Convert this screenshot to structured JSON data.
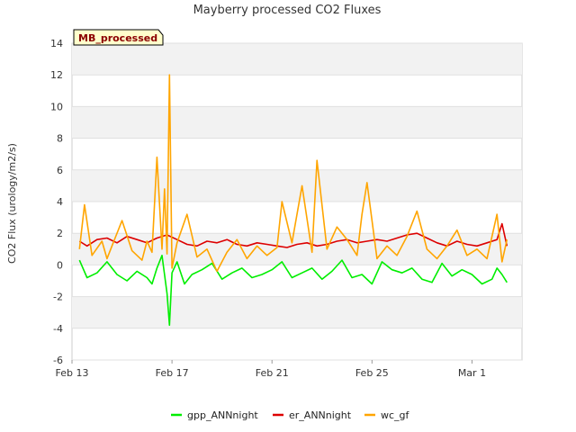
{
  "chart_data": {
    "type": "line",
    "title": "Mayberry processed CO2 Fluxes",
    "badge": "MB_processed",
    "xlabel": "",
    "ylabel": "CO2 Flux (urology/m2/s)",
    "ylim": [
      -6,
      14
    ],
    "yticks": [
      -6,
      -4,
      -2,
      0,
      2,
      4,
      6,
      8,
      10,
      12,
      14
    ],
    "xlim_days": [
      0,
      18
    ],
    "xticks": [
      {
        "day": 0,
        "label": "Feb 13"
      },
      {
        "day": 4,
        "label": "Feb 17"
      },
      {
        "day": 8,
        "label": "Feb 21"
      },
      {
        "day": 12,
        "label": "Feb 25"
      },
      {
        "day": 16,
        "label": "Mar 1"
      }
    ],
    "grid": true,
    "legend_position": "bottom",
    "series": [
      {
        "name": "gpp_ANNnight",
        "color": "#00ee00",
        "x": [
          0.3,
          0.6,
          1.0,
          1.4,
          1.8,
          2.2,
          2.6,
          3.0,
          3.2,
          3.4,
          3.6,
          3.8,
          3.9,
          4.0,
          4.2,
          4.5,
          4.8,
          5.2,
          5.6,
          6.0,
          6.4,
          6.8,
          7.2,
          7.6,
          8.0,
          8.4,
          8.8,
          9.2,
          9.6,
          10.0,
          10.4,
          10.8,
          11.2,
          11.6,
          12.0,
          12.4,
          12.8,
          13.2,
          13.6,
          14.0,
          14.4,
          14.8,
          15.2,
          15.6,
          16.0,
          16.4,
          16.8,
          17.0,
          17.2,
          17.4
        ],
        "y": [
          0.3,
          -0.8,
          -0.5,
          0.2,
          -0.6,
          -1.0,
          -0.4,
          -0.8,
          -1.2,
          -0.2,
          0.6,
          -1.8,
          -3.8,
          -0.5,
          0.2,
          -1.2,
          -0.6,
          -0.3,
          0.1,
          -0.9,
          -0.5,
          -0.2,
          -0.8,
          -0.6,
          -0.3,
          0.2,
          -0.8,
          -0.5,
          -0.2,
          -0.9,
          -0.4,
          0.3,
          -0.8,
          -0.6,
          -1.2,
          0.2,
          -0.3,
          -0.5,
          -0.2,
          -0.9,
          -1.1,
          0.1,
          -0.7,
          -0.3,
          -0.6,
          -1.2,
          -0.9,
          -0.2,
          -0.6,
          -1.1
        ]
      },
      {
        "name": "er_ANNnight",
        "color": "#dd0000",
        "x": [
          0.3,
          0.6,
          1.0,
          1.4,
          1.8,
          2.2,
          2.6,
          3.0,
          3.4,
          3.8,
          4.2,
          4.6,
          5.0,
          5.4,
          5.8,
          6.2,
          6.6,
          7.0,
          7.4,
          7.8,
          8.2,
          8.6,
          9.0,
          9.4,
          9.8,
          10.2,
          10.6,
          11.0,
          11.4,
          11.8,
          12.2,
          12.6,
          13.0,
          13.4,
          13.8,
          14.2,
          14.6,
          15.0,
          15.4,
          15.8,
          16.2,
          16.6,
          17.0,
          17.2,
          17.4
        ],
        "y": [
          1.5,
          1.2,
          1.6,
          1.7,
          1.4,
          1.8,
          1.6,
          1.4,
          1.7,
          1.9,
          1.6,
          1.3,
          1.2,
          1.5,
          1.4,
          1.6,
          1.3,
          1.2,
          1.4,
          1.3,
          1.2,
          1.1,
          1.3,
          1.4,
          1.2,
          1.3,
          1.5,
          1.6,
          1.4,
          1.5,
          1.6,
          1.5,
          1.7,
          1.9,
          2.0,
          1.7,
          1.4,
          1.2,
          1.5,
          1.3,
          1.2,
          1.4,
          1.6,
          2.6,
          1.2
        ]
      },
      {
        "name": "wc_gf",
        "color": "#ffa500",
        "x": [
          0.3,
          0.5,
          0.8,
          1.2,
          1.4,
          1.6,
          2.0,
          2.4,
          2.8,
          3.0,
          3.2,
          3.4,
          3.6,
          3.7,
          3.8,
          3.9,
          4.0,
          4.2,
          4.6,
          5.0,
          5.4,
          5.8,
          6.2,
          6.6,
          7.0,
          7.4,
          7.8,
          8.2,
          8.4,
          8.8,
          9.2,
          9.6,
          9.8,
          10.2,
          10.6,
          11.0,
          11.4,
          11.6,
          11.8,
          12.2,
          12.6,
          13.0,
          13.4,
          13.8,
          14.2,
          14.6,
          15.0,
          15.4,
          15.8,
          16.2,
          16.6,
          17.0,
          17.2,
          17.4
        ],
        "y": [
          1.0,
          3.8,
          0.6,
          1.5,
          0.4,
          1.2,
          2.8,
          0.9,
          0.3,
          1.5,
          0.8,
          6.8,
          1.0,
          4.8,
          0.7,
          12.0,
          -0.2,
          1.4,
          3.2,
          0.5,
          1.0,
          -0.4,
          0.8,
          1.6,
          0.4,
          1.2,
          0.6,
          1.1,
          4.0,
          1.4,
          5.0,
          0.8,
          6.6,
          1.0,
          2.4,
          1.6,
          0.6,
          3.2,
          5.2,
          0.4,
          1.2,
          0.6,
          1.8,
          3.4,
          1.0,
          0.4,
          1.2,
          2.2,
          0.6,
          1.0,
          0.4,
          3.2,
          0.2,
          1.6
        ]
      }
    ]
  }
}
